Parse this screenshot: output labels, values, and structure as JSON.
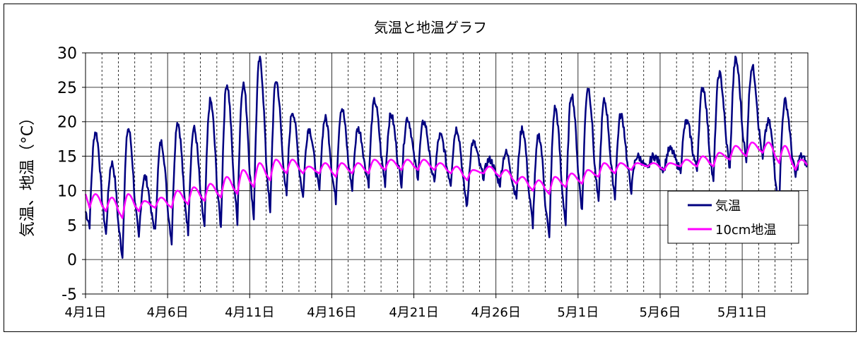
{
  "chart_data": {
    "type": "line",
    "title": "気温と地温グラフ",
    "ylabel": "気温、地温（°C）",
    "xlabel": "",
    "ylim": [
      -5,
      30
    ],
    "yticks": [
      -5,
      0,
      5,
      10,
      15,
      20,
      25,
      30
    ],
    "grid": true,
    "legend_position": "bottom-right",
    "x_start": "4月1日",
    "x_end": "5月14日",
    "xtick_labels": [
      "4月1日",
      "4月6日",
      "4月11日",
      "4月16日",
      "4月21日",
      "4月26日",
      "5月1日",
      "5月6日",
      "5月11日"
    ],
    "series": [
      {
        "name": "気温",
        "color": "#000080",
        "x": [
          "4月1日",
          "4月2日",
          "4月3日",
          "4月4日",
          "4月5日",
          "4月6日",
          "4月7日",
          "4月8日",
          "4月9日",
          "4月10日",
          "4月11日",
          "4月12日",
          "4月13日",
          "4月14日",
          "4月15日",
          "4月16日",
          "4月17日",
          "4月18日",
          "4月19日",
          "4月20日",
          "4月21日",
          "4月22日",
          "4月23日",
          "4月24日",
          "4月25日",
          "4月26日",
          "4月27日",
          "4月28日",
          "4月29日",
          "4月30日",
          "5月1日",
          "5月2日",
          "5月3日",
          "5月4日",
          "5月5日",
          "5月6日",
          "5月7日",
          "5月8日",
          "5月9日",
          "5月10日",
          "5月11日",
          "5月12日",
          "5月13日",
          "5月14日"
        ],
        "daily_min": [
          5.0,
          3.5,
          0.3,
          3.0,
          4.0,
          2.5,
          4.0,
          4.5,
          4.5,
          5.5,
          6.0,
          6.5,
          9.0,
          9.0,
          10.0,
          8.5,
          10.0,
          11.0,
          11.0,
          11.0,
          12.0,
          11.0,
          11.0,
          7.5,
          12.0,
          11.0,
          9.0,
          5.0,
          3.0,
          5.0,
          7.0,
          8.0,
          9.0,
          10.0,
          13.0,
          13.0,
          13.0,
          13.0,
          11.0,
          13.0,
          14.0,
          14.5,
          8.0,
          12.0
        ],
        "daily_max": [
          18.5,
          14.0,
          19.0,
          12.0,
          17.0,
          20.0,
          19.0,
          23.0,
          25.5,
          25.5,
          29.0,
          26.0,
          21.5,
          19.0,
          20.5,
          22.0,
          19.0,
          23.0,
          21.0,
          20.5,
          20.0,
          18.0,
          19.0,
          17.0,
          14.5,
          15.5,
          19.0,
          18.0,
          22.0,
          24.0,
          25.0,
          23.0,
          21.0,
          15.0,
          15.0,
          16.0,
          20.0,
          25.0,
          27.0,
          29.0,
          28.0,
          20.0,
          23.0,
          15.0
        ]
      },
      {
        "name": "10cm地温",
        "color": "#ff00ff",
        "x": [
          "4月1日",
          "4月2日",
          "4月3日",
          "4月4日",
          "4月5日",
          "4月6日",
          "4月7日",
          "4月8日",
          "4月9日",
          "4月10日",
          "4月11日",
          "4月12日",
          "4月13日",
          "4月14日",
          "4月15日",
          "4月16日",
          "4月17日",
          "4月18日",
          "4月19日",
          "4月20日",
          "4月21日",
          "4月22日",
          "4月23日",
          "4月24日",
          "4月25日",
          "4月26日",
          "4月27日",
          "4月28日",
          "4月29日",
          "4月30日",
          "5月1日",
          "5月2日",
          "5月3日",
          "5月4日",
          "5月5日",
          "5月6日",
          "5月7日",
          "5月8日",
          "5月9日",
          "5月10日",
          "5月11日",
          "5月12日",
          "5月13日",
          "5月14日"
        ],
        "daily_min": [
          7.5,
          7.0,
          6.0,
          7.0,
          7.5,
          7.5,
          8.0,
          8.5,
          9.0,
          9.5,
          10.5,
          11.5,
          12.5,
          12.5,
          12.5,
          12.0,
          12.5,
          12.5,
          13.0,
          13.0,
          13.0,
          13.0,
          12.5,
          11.5,
          12.5,
          12.0,
          11.0,
          10.0,
          9.5,
          10.5,
          11.0,
          12.0,
          12.5,
          13.0,
          13.5,
          13.0,
          13.5,
          13.5,
          13.5,
          14.5,
          15.0,
          15.5,
          14.0,
          13.0
        ],
        "daily_max": [
          9.5,
          9.0,
          9.5,
          8.5,
          9.0,
          10.0,
          10.5,
          11.0,
          12.0,
          13.0,
          14.0,
          14.5,
          14.5,
          13.5,
          14.0,
          14.0,
          14.0,
          14.5,
          14.5,
          14.5,
          14.5,
          14.0,
          13.5,
          13.0,
          13.5,
          13.0,
          12.0,
          11.5,
          12.0,
          12.5,
          13.0,
          14.0,
          14.0,
          14.0,
          14.0,
          14.0,
          14.5,
          15.0,
          15.5,
          16.5,
          17.0,
          17.0,
          16.5,
          14.5
        ]
      }
    ]
  }
}
